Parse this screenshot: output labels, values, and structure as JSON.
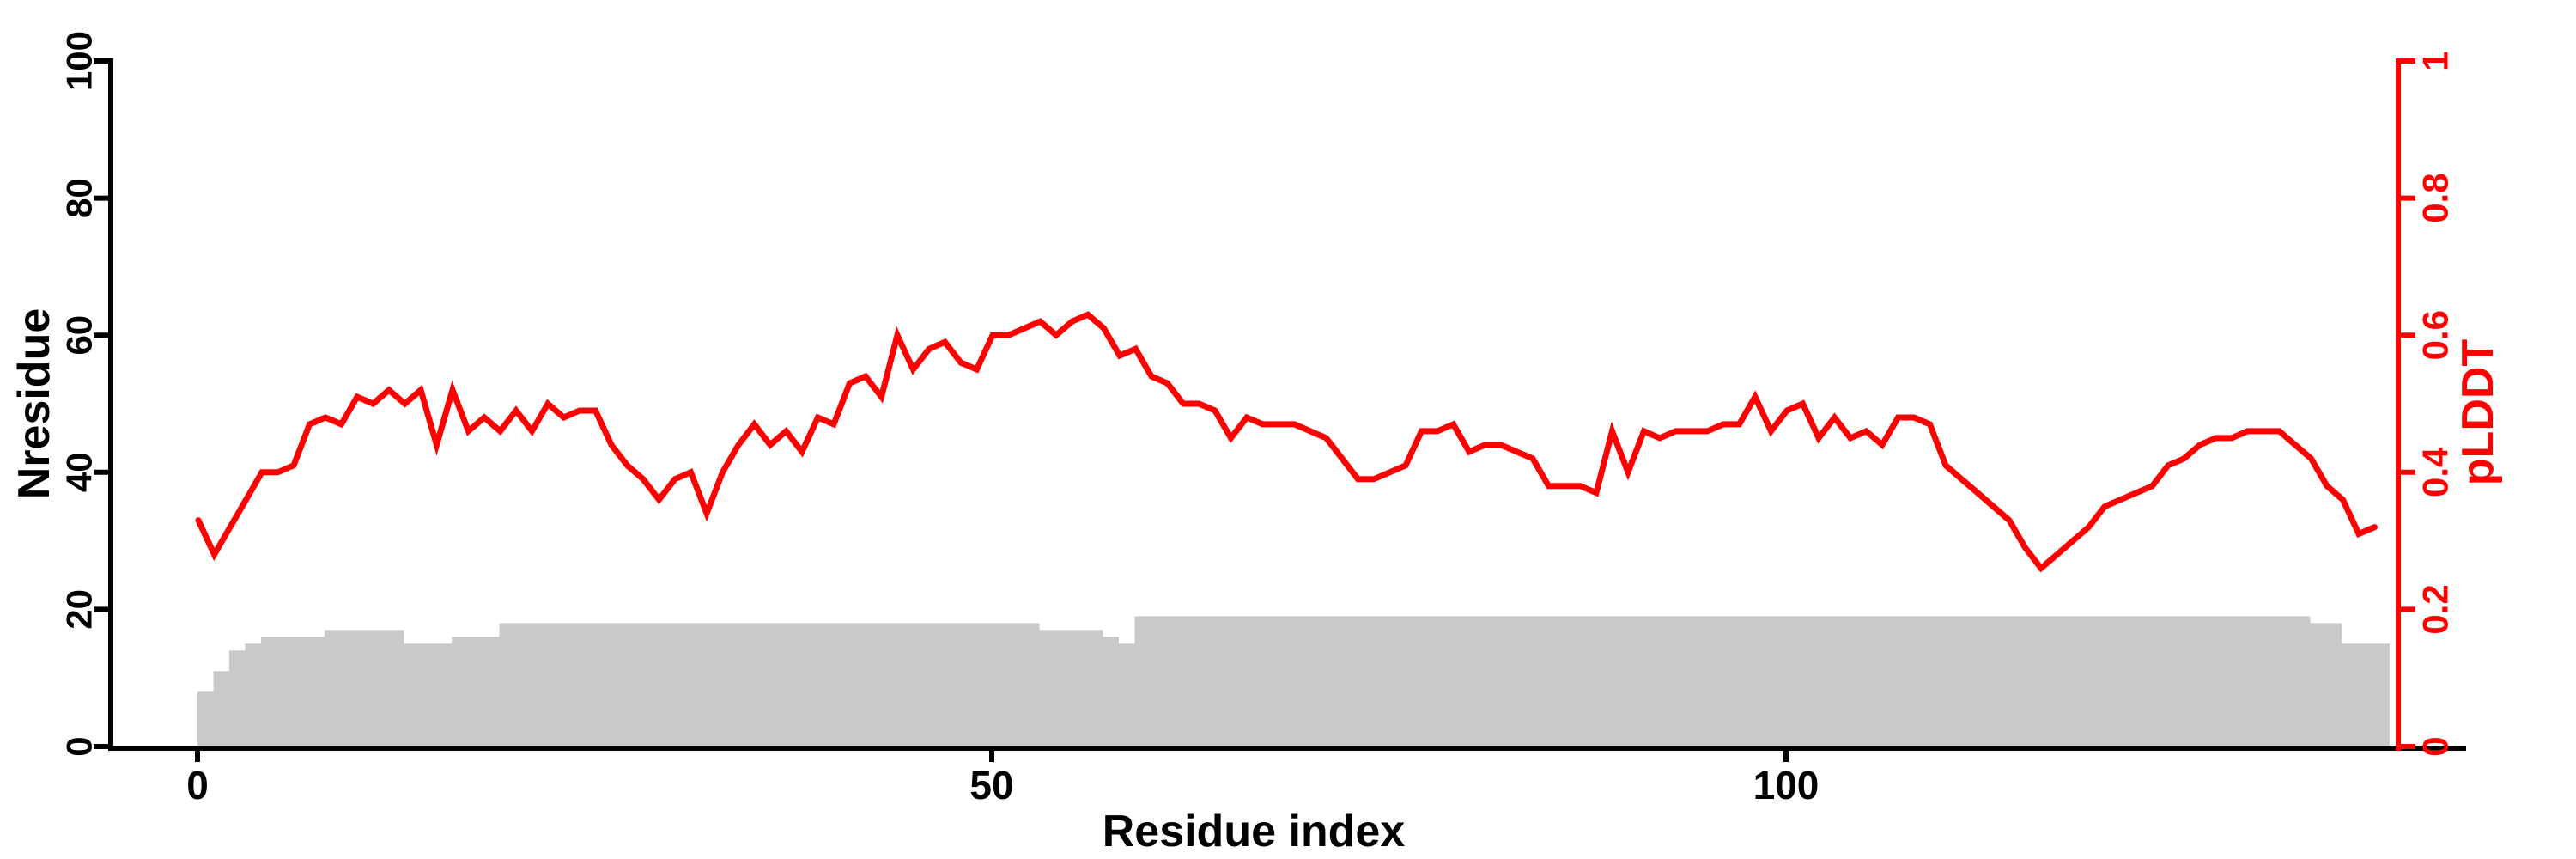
{
  "figure": {
    "background": "#ffffff",
    "xlabel": "Residue index",
    "ylabel_left": "Nresidue",
    "ylabel_right": "pLDDT"
  },
  "chart_data": {
    "type": "line+bar dual-axis",
    "title": "",
    "xlabel": "Residue index",
    "ylabel_left": "Nresidue",
    "ylabel_right": "pLDDT",
    "x_tick_labels": [
      "0",
      "50",
      "100"
    ],
    "x_tick_values": [
      0,
      50,
      100
    ],
    "left_tick_labels": [
      "0",
      "20",
      "40",
      "60",
      "80",
      "100"
    ],
    "left_tick_values": [
      0,
      20,
      40,
      60,
      80,
      100
    ],
    "right_tick_labels": [
      "0",
      "0.2",
      "0.4",
      "0.6",
      "0.8",
      "1"
    ],
    "right_tick_values": [
      0,
      0.2,
      0.4,
      0.6,
      0.8,
      1
    ],
    "left_range": [
      0,
      100
    ],
    "right_range": [
      0,
      1
    ],
    "n_points": 138,
    "x_description": "residue index, one point per residue starting at 0",
    "grid": false,
    "colors": {
      "bar_fill": "#c9c9c9",
      "line": "#ff0000",
      "left_axis": "#000000",
      "right_axis": "#ff0000"
    },
    "series": [
      {
        "name": "Nresidue",
        "type": "bar",
        "axis": "left",
        "color": "#c9c9c9",
        "values": [
          8,
          11,
          14,
          15,
          16,
          16,
          16,
          16,
          17,
          17,
          17,
          17,
          17,
          15,
          15,
          15,
          16,
          16,
          16,
          18,
          18,
          18,
          18,
          18,
          18,
          18,
          18,
          18,
          18,
          18,
          18,
          18,
          18,
          18,
          18,
          18,
          18,
          18,
          18,
          18,
          18,
          18,
          18,
          18,
          18,
          18,
          18,
          18,
          18,
          18,
          18,
          18,
          18,
          17,
          17,
          17,
          17,
          16,
          15,
          19,
          19,
          19,
          19,
          19,
          19,
          19,
          19,
          19,
          19,
          19,
          19,
          19,
          19,
          19,
          19,
          19,
          19,
          19,
          19,
          19,
          19,
          19,
          19,
          19,
          19,
          19,
          19,
          19,
          19,
          19,
          19,
          19,
          19,
          19,
          19,
          19,
          19,
          19,
          19,
          19,
          19,
          19,
          19,
          19,
          19,
          19,
          19,
          19,
          19,
          19,
          19,
          19,
          19,
          19,
          19,
          19,
          19,
          19,
          19,
          19,
          19,
          19,
          19,
          19,
          19,
          19,
          19,
          19,
          19,
          19,
          19,
          19,
          19,
          18,
          18,
          15,
          15,
          15
        ]
      },
      {
        "name": "pLDDT",
        "type": "line",
        "axis": "right",
        "color": "#ff0000",
        "values": [
          0.33,
          0.28,
          0.32,
          0.36,
          0.4,
          0.4,
          0.41,
          0.47,
          0.48,
          0.47,
          0.51,
          0.5,
          0.52,
          0.5,
          0.52,
          0.44,
          0.52,
          0.46,
          0.48,
          0.46,
          0.49,
          0.46,
          0.5,
          0.48,
          0.49,
          0.49,
          0.44,
          0.41,
          0.39,
          0.36,
          0.39,
          0.4,
          0.34,
          0.4,
          0.44,
          0.47,
          0.44,
          0.46,
          0.43,
          0.48,
          0.47,
          0.53,
          0.54,
          0.51,
          0.6,
          0.55,
          0.58,
          0.59,
          0.56,
          0.55,
          0.6,
          0.6,
          0.61,
          0.62,
          0.6,
          0.62,
          0.63,
          0.61,
          0.57,
          0.58,
          0.54,
          0.53,
          0.5,
          0.5,
          0.49,
          0.45,
          0.48,
          0.47,
          0.47,
          0.47,
          0.46,
          0.45,
          0.42,
          0.39,
          0.39,
          0.4,
          0.41,
          0.46,
          0.46,
          0.47,
          0.43,
          0.44,
          0.44,
          0.43,
          0.42,
          0.38,
          0.38,
          0.38,
          0.37,
          0.46,
          0.4,
          0.46,
          0.45,
          0.46,
          0.46,
          0.46,
          0.47,
          0.47,
          0.51,
          0.46,
          0.49,
          0.5,
          0.45,
          0.48,
          0.45,
          0.46,
          0.44,
          0.48,
          0.48,
          0.47,
          0.41,
          0.39,
          0.37,
          0.35,
          0.33,
          0.29,
          0.26,
          0.28,
          0.3,
          0.32,
          0.35,
          0.36,
          0.37,
          0.38,
          0.41,
          0.42,
          0.44,
          0.45,
          0.45,
          0.46,
          0.46,
          0.46,
          0.44,
          0.42,
          0.38,
          0.36,
          0.31,
          0.32
        ]
      }
    ]
  }
}
